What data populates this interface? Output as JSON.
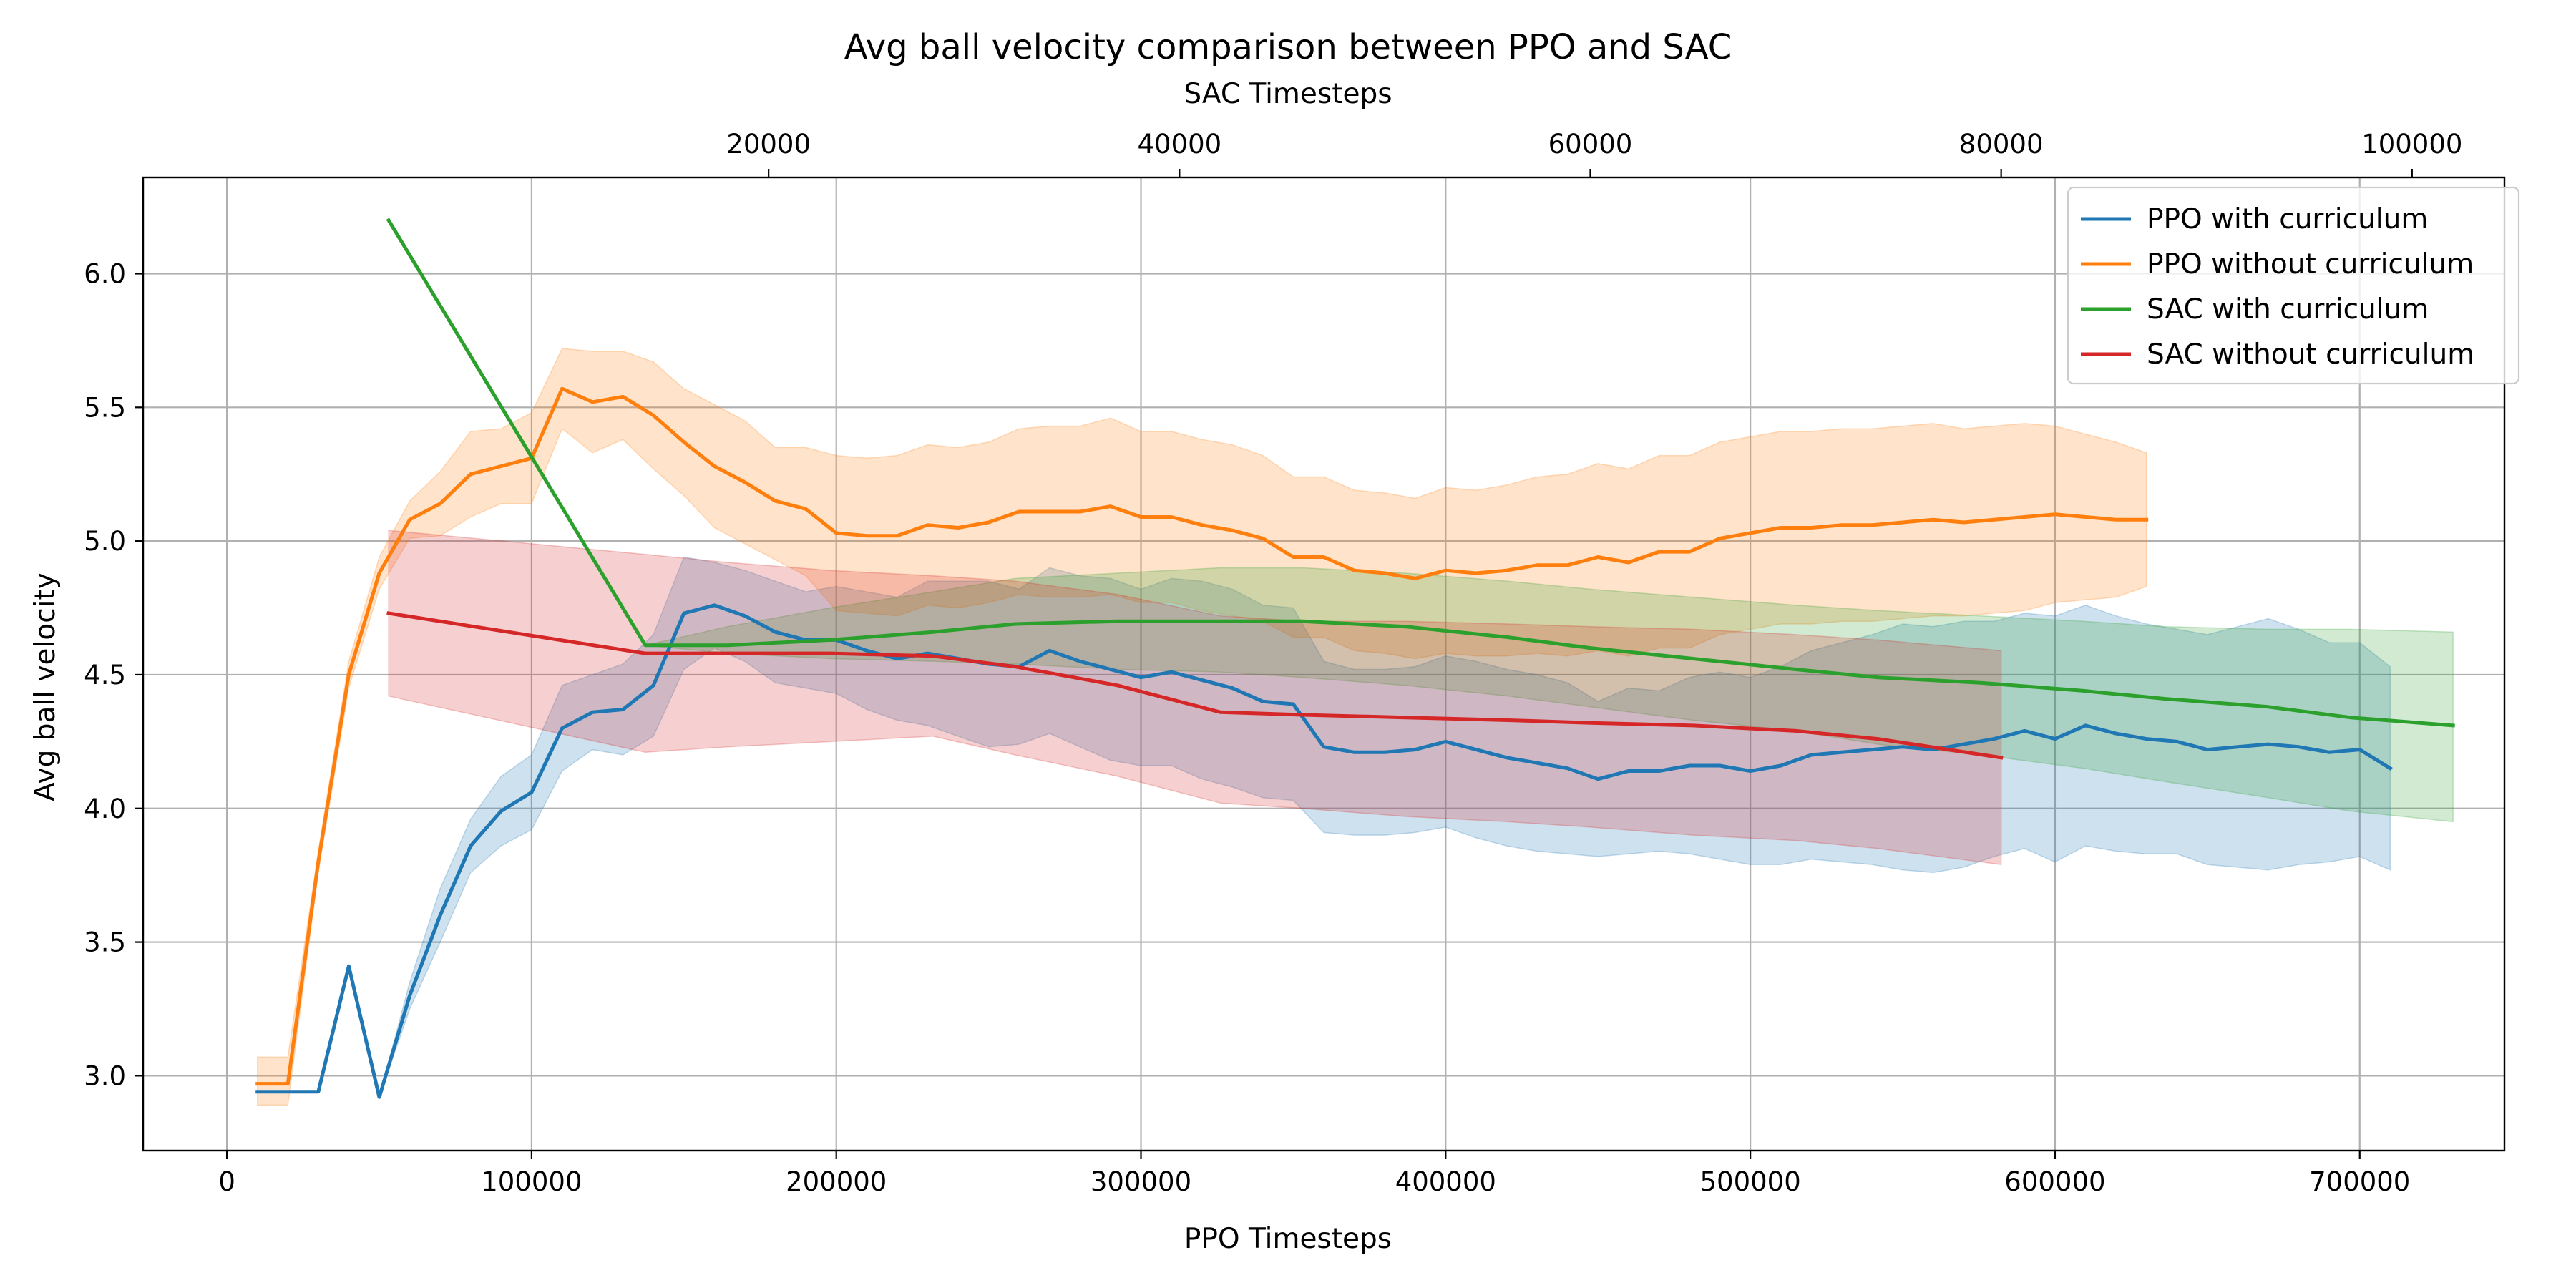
{
  "chart_data": {
    "type": "line",
    "title": "Avg ball velocity comparison between PPO and SAC",
    "xlabel": "PPO Timesteps",
    "x2label": "SAC Timesteps",
    "ylabel": "Avg ball velocity",
    "xlim": [
      -27500,
      747500
    ],
    "x2lim": [
      -10450,
      104500
    ],
    "ylim": [
      2.72,
      6.36
    ],
    "xticks": [
      0,
      100000,
      200000,
      300000,
      400000,
      500000,
      600000,
      700000
    ],
    "xtick_labels": [
      "0",
      "100000",
      "200000",
      "300000",
      "400000",
      "500000",
      "600000",
      "700000"
    ],
    "x2ticks": [
      20000,
      40000,
      60000,
      80000,
      100000
    ],
    "x2tick_labels": [
      "20000",
      "40000",
      "60000",
      "80000",
      "100000"
    ],
    "yticks": [
      3.0,
      3.5,
      4.0,
      4.5,
      5.0,
      5.5,
      6.0
    ],
    "ytick_labels": [
      "3.0",
      "3.5",
      "4.0",
      "4.5",
      "5.0",
      "5.5",
      "6.0"
    ],
    "grid": true,
    "legend_position": "top-right",
    "series": [
      {
        "name": "PPO with curriculum",
        "axis": "bottom",
        "color": "#1f77b4",
        "x": [
          10000,
          20000,
          30000,
          40000,
          50000,
          60000,
          70000,
          80000,
          90000,
          100000,
          110000,
          120000,
          130000,
          140000,
          150000,
          160000,
          170000,
          180000,
          190000,
          200000,
          210000,
          220000,
          230000,
          240000,
          250000,
          260000,
          270000,
          280000,
          290000,
          300000,
          310000,
          320000,
          330000,
          340000,
          350000,
          360000,
          370000,
          380000,
          390000,
          400000,
          410000,
          420000,
          430000,
          440000,
          450000,
          460000,
          470000,
          480000,
          490000,
          500000,
          510000,
          520000,
          530000,
          540000,
          550000,
          560000,
          570000,
          580000,
          590000,
          600000,
          610000,
          620000,
          630000,
          640000,
          650000,
          660000,
          670000,
          680000,
          690000,
          700000,
          710000
        ],
        "y": [
          2.94,
          2.94,
          2.94,
          3.41,
          2.92,
          3.3,
          3.6,
          3.86,
          3.99,
          4.06,
          4.3,
          4.36,
          4.37,
          4.46,
          4.73,
          4.76,
          4.72,
          4.66,
          4.63,
          4.63,
          4.59,
          4.56,
          4.58,
          4.56,
          4.54,
          4.53,
          4.59,
          4.55,
          4.52,
          4.49,
          4.51,
          4.48,
          4.45,
          4.4,
          4.39,
          4.23,
          4.21,
          4.21,
          4.22,
          4.25,
          4.22,
          4.19,
          4.17,
          4.15,
          4.11,
          4.14,
          4.14,
          4.16,
          4.16,
          4.14,
          4.16,
          4.2,
          4.21,
          4.22,
          4.23,
          4.22,
          4.24,
          4.26,
          4.29,
          4.26,
          4.31,
          4.28,
          4.26,
          4.25,
          4.22,
          4.23,
          4.24,
          4.23,
          4.21,
          4.22,
          4.15
        ],
        "lower": [
          2.94,
          2.94,
          2.94,
          3.41,
          2.92,
          3.25,
          3.5,
          3.76,
          3.86,
          3.92,
          4.14,
          4.22,
          4.2,
          4.27,
          4.52,
          4.6,
          4.55,
          4.47,
          4.45,
          4.43,
          4.37,
          4.33,
          4.31,
          4.27,
          4.23,
          4.24,
          4.28,
          4.23,
          4.18,
          4.16,
          4.16,
          4.11,
          4.08,
          4.04,
          4.03,
          3.91,
          3.9,
          3.9,
          3.91,
          3.93,
          3.89,
          3.86,
          3.84,
          3.83,
          3.82,
          3.83,
          3.84,
          3.83,
          3.81,
          3.79,
          3.79,
          3.81,
          3.8,
          3.79,
          3.77,
          3.76,
          3.78,
          3.82,
          3.85,
          3.8,
          3.86,
          3.84,
          3.83,
          3.83,
          3.79,
          3.78,
          3.77,
          3.79,
          3.8,
          3.82,
          3.77
        ],
        "upper": [
          2.94,
          2.94,
          2.94,
          3.41,
          2.92,
          3.35,
          3.7,
          3.96,
          4.12,
          4.2,
          4.46,
          4.5,
          4.54,
          4.65,
          4.94,
          4.92,
          4.89,
          4.85,
          4.81,
          4.83,
          4.81,
          4.79,
          4.85,
          4.85,
          4.85,
          4.82,
          4.9,
          4.87,
          4.86,
          4.82,
          4.86,
          4.85,
          4.82,
          4.76,
          4.75,
          4.55,
          4.52,
          4.52,
          4.53,
          4.57,
          4.55,
          4.52,
          4.5,
          4.47,
          4.4,
          4.45,
          4.44,
          4.49,
          4.51,
          4.49,
          4.53,
          4.59,
          4.62,
          4.65,
          4.69,
          4.68,
          4.7,
          4.7,
          4.73,
          4.72,
          4.76,
          4.72,
          4.69,
          4.67,
          4.65,
          4.68,
          4.71,
          4.67,
          4.62,
          4.62,
          4.53
        ]
      },
      {
        "name": "PPO without curriculum",
        "axis": "bottom",
        "color": "#ff7f0e",
        "x": [
          10000,
          20000,
          30000,
          40000,
          50000,
          60000,
          70000,
          80000,
          90000,
          100000,
          110000,
          120000,
          130000,
          140000,
          150000,
          160000,
          170000,
          180000,
          190000,
          200000,
          210000,
          220000,
          230000,
          240000,
          250000,
          260000,
          270000,
          280000,
          290000,
          300000,
          310000,
          320000,
          330000,
          340000,
          350000,
          360000,
          370000,
          380000,
          390000,
          400000,
          410000,
          420000,
          430000,
          440000,
          450000,
          460000,
          470000,
          480000,
          490000,
          500000,
          510000,
          520000,
          530000,
          540000,
          550000,
          560000,
          570000,
          580000,
          590000,
          600000,
          610000,
          620000,
          630000
        ],
        "y": [
          2.97,
          2.97,
          3.8,
          4.5,
          4.88,
          5.08,
          5.14,
          5.25,
          5.28,
          5.31,
          5.57,
          5.52,
          5.54,
          5.47,
          5.37,
          5.28,
          5.22,
          5.15,
          5.12,
          5.03,
          5.02,
          5.02,
          5.06,
          5.05,
          5.07,
          5.11,
          5.11,
          5.11,
          5.13,
          5.09,
          5.09,
          5.06,
          5.04,
          5.01,
          4.94,
          4.94,
          4.89,
          4.88,
          4.86,
          4.89,
          4.88,
          4.89,
          4.91,
          4.91,
          4.94,
          4.92,
          4.96,
          4.96,
          5.01,
          5.03,
          5.05,
          5.05,
          5.06,
          5.06,
          5.07,
          5.08,
          5.07,
          5.08,
          5.09,
          5.1,
          5.09,
          5.08,
          5.08
        ],
        "lower": [
          2.89,
          2.89,
          3.76,
          4.45,
          4.82,
          5.01,
          5.02,
          5.09,
          5.14,
          5.14,
          5.42,
          5.33,
          5.38,
          5.27,
          5.17,
          5.05,
          4.99,
          4.93,
          4.87,
          4.74,
          4.73,
          4.72,
          4.76,
          4.75,
          4.77,
          4.8,
          4.79,
          4.79,
          4.8,
          4.77,
          4.77,
          4.74,
          4.72,
          4.7,
          4.64,
          4.64,
          4.59,
          4.58,
          4.56,
          4.58,
          4.57,
          4.57,
          4.58,
          4.57,
          4.59,
          4.57,
          4.6,
          4.6,
          4.65,
          4.67,
          4.69,
          4.69,
          4.7,
          4.7,
          4.71,
          4.72,
          4.72,
          4.73,
          4.74,
          4.77,
          4.78,
          4.79,
          4.83
        ],
        "upper": [
          3.07,
          3.07,
          3.84,
          4.55,
          4.94,
          5.15,
          5.26,
          5.41,
          5.42,
          5.48,
          5.72,
          5.71,
          5.71,
          5.67,
          5.57,
          5.51,
          5.45,
          5.35,
          5.35,
          5.32,
          5.31,
          5.32,
          5.36,
          5.35,
          5.37,
          5.42,
          5.43,
          5.43,
          5.46,
          5.41,
          5.41,
          5.38,
          5.36,
          5.32,
          5.24,
          5.24,
          5.19,
          5.18,
          5.16,
          5.2,
          5.19,
          5.21,
          5.24,
          5.25,
          5.29,
          5.27,
          5.32,
          5.32,
          5.37,
          5.39,
          5.41,
          5.41,
          5.42,
          5.42,
          5.43,
          5.44,
          5.42,
          5.43,
          5.44,
          5.43,
          5.4,
          5.37,
          5.33
        ]
      },
      {
        "name": "SAC with curriculum",
        "axis": "top",
        "color": "#2ca02c",
        "x": [
          1500,
          14000,
          18000,
          23000,
          28000,
          32000,
          37000,
          42000,
          46000,
          51000,
          56000,
          60000,
          65000,
          70000,
          74000,
          79000,
          84000,
          88000,
          93000,
          97000,
          102000
        ],
        "y": [
          6.2,
          4.61,
          4.61,
          4.63,
          4.66,
          4.69,
          4.7,
          4.7,
          4.7,
          4.68,
          4.64,
          4.6,
          4.56,
          4.52,
          4.49,
          4.47,
          4.44,
          4.41,
          4.38,
          4.34,
          4.31
        ],
        "lower": [
          6.2,
          4.61,
          4.58,
          4.56,
          4.55,
          4.54,
          4.52,
          4.51,
          4.49,
          4.46,
          4.42,
          4.38,
          4.33,
          4.29,
          4.24,
          4.2,
          4.15,
          4.1,
          4.04,
          3.99,
          3.95
        ],
        "upper": [
          6.2,
          4.61,
          4.68,
          4.75,
          4.81,
          4.86,
          4.88,
          4.9,
          4.9,
          4.88,
          4.85,
          4.82,
          4.79,
          4.76,
          4.74,
          4.72,
          4.7,
          4.68,
          4.67,
          4.67,
          4.66
        ]
      },
      {
        "name": "SAC without curriculum",
        "axis": "top",
        "color": "#d62728",
        "x": [
          1500,
          14000,
          18000,
          23000,
          28000,
          32000,
          37000,
          42000,
          46000,
          51000,
          56000,
          60000,
          65000,
          70000,
          74000,
          80000
        ],
        "y": [
          4.73,
          4.58,
          4.58,
          4.58,
          4.57,
          4.53,
          4.46,
          4.36,
          4.35,
          4.34,
          4.33,
          4.32,
          4.31,
          4.29,
          4.26,
          4.19
        ],
        "lower": [
          4.42,
          4.21,
          4.23,
          4.25,
          4.27,
          4.2,
          4.12,
          4.02,
          4.0,
          3.97,
          3.95,
          3.93,
          3.9,
          3.88,
          3.85,
          3.79
        ],
        "upper": [
          5.04,
          4.95,
          4.92,
          4.89,
          4.87,
          4.85,
          4.8,
          4.72,
          4.7,
          4.7,
          4.69,
          4.68,
          4.67,
          4.65,
          4.63,
          4.59
        ]
      }
    ]
  }
}
